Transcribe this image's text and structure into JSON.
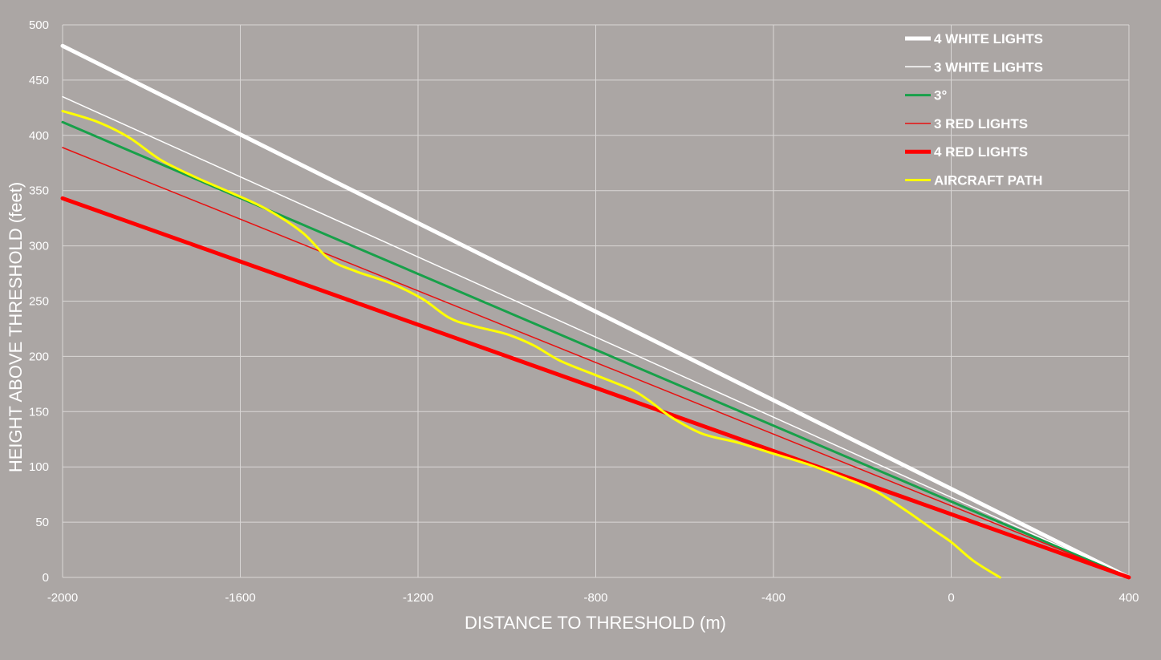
{
  "chart_data": {
    "type": "line",
    "title": "",
    "xlabel": "DISTANCE TO THRESHOLD (m)",
    "ylabel": "HEIGHT ABOVE THRESHOLD (feet)",
    "xlim": [
      -2000,
      400
    ],
    "ylim": [
      0,
      500
    ],
    "x_ticks": [
      -2000,
      -1600,
      -1200,
      -800,
      -400,
      0,
      400
    ],
    "y_ticks": [
      0,
      50,
      100,
      150,
      200,
      250,
      300,
      350,
      400,
      450,
      500
    ],
    "grid": true,
    "legend_position": "top-right",
    "background_color": "#aba6a4",
    "grid_color": "#d9d6d5",
    "series": [
      {
        "name": "4 WHITE LIGHTS",
        "color": "#ffffff",
        "weight": "thick",
        "x": [
          -2000,
          400
        ],
        "y": [
          481,
          0
        ]
      },
      {
        "name": "3 WHITE LIGHTS",
        "color": "#ffffff",
        "weight": "thin",
        "x": [
          -2000,
          400
        ],
        "y": [
          435,
          0
        ]
      },
      {
        "name": "3°",
        "color": "#18a04a",
        "weight": "medium",
        "x": [
          -2000,
          400
        ],
        "y": [
          412,
          0
        ]
      },
      {
        "name": "3 RED LIGHTS",
        "color": "#e81010",
        "weight": "thin",
        "x": [
          -2000,
          400
        ],
        "y": [
          389,
          0
        ]
      },
      {
        "name": "4 RED LIGHTS",
        "color": "#ff0000",
        "weight": "thick",
        "x": [
          -2000,
          400
        ],
        "y": [
          343,
          0
        ]
      },
      {
        "name": "AIRCRAFT PATH",
        "color": "#ffff00",
        "weight": "medium",
        "x": [
          -2000,
          -1920,
          -1850,
          -1780,
          -1700,
          -1620,
          -1540,
          -1460,
          -1400,
          -1340,
          -1260,
          -1190,
          -1130,
          -1080,
          -1000,
          -940,
          -880,
          -800,
          -720,
          -680,
          -630,
          -560,
          -480,
          -400,
          -320,
          -240,
          -170,
          -100,
          -40,
          0,
          50,
          110
        ],
        "y": [
          422,
          412,
          398,
          378,
          362,
          348,
          333,
          312,
          288,
          277,
          266,
          252,
          235,
          228,
          220,
          210,
          196,
          183,
          170,
          160,
          145,
          130,
          122,
          112,
          102,
          90,
          78,
          60,
          43,
          32,
          15,
          0
        ]
      }
    ]
  }
}
